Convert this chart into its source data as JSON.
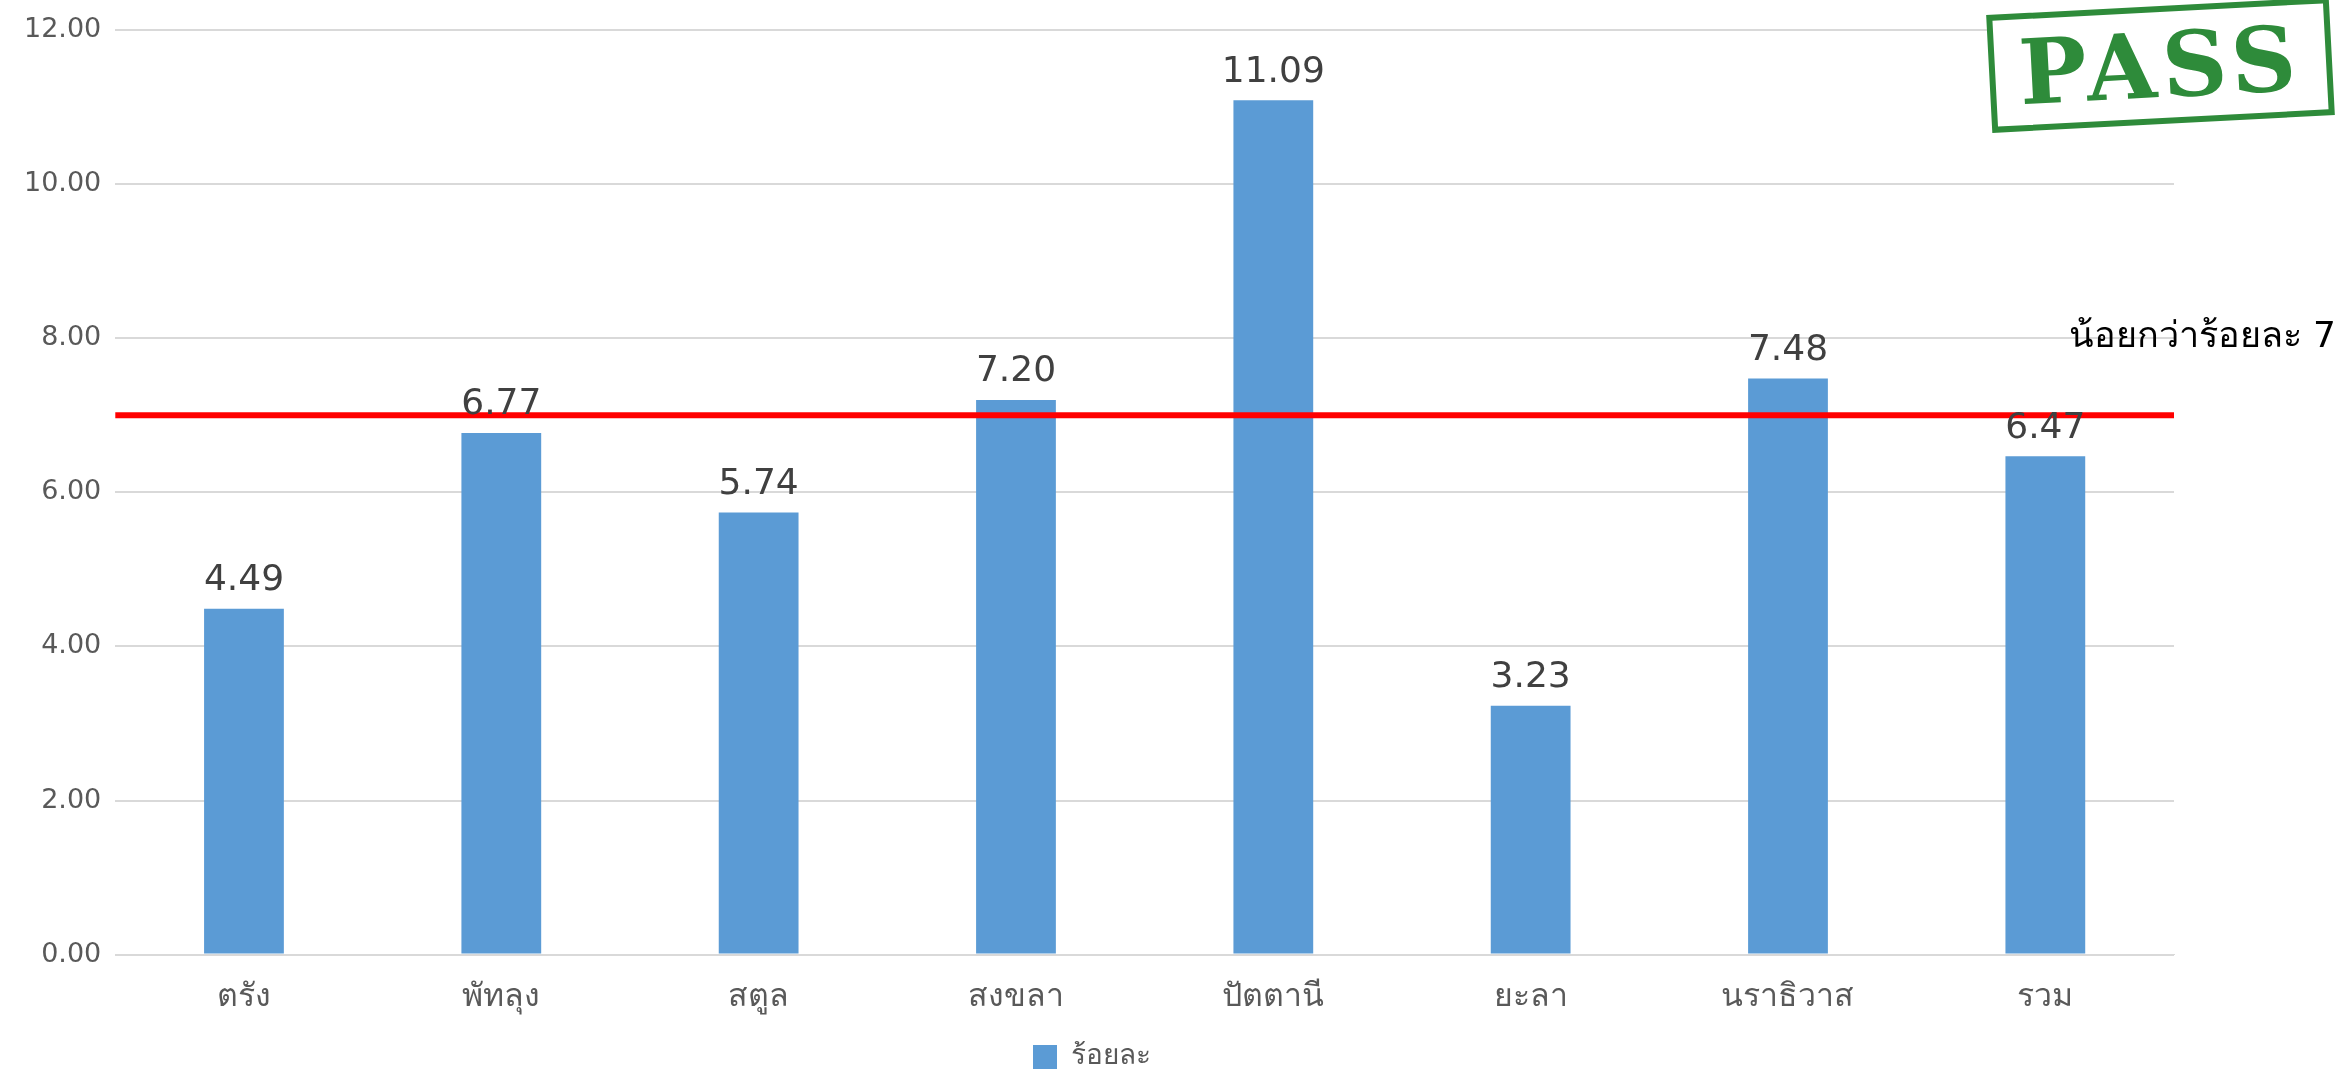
{
  "chart_data": {
    "type": "bar",
    "categories": [
      "ตรัง",
      "พัทลุง",
      "สตูล",
      "สงขลา",
      "ปัตตานี",
      "ยะลา",
      "นราธิวาส",
      "รวม"
    ],
    "series": [
      {
        "name": "ร้อยละ",
        "color": "#5b9bd5",
        "values": [
          4.49,
          6.77,
          5.74,
          7.2,
          11.09,
          3.23,
          7.48,
          6.47
        ]
      }
    ],
    "ylim": [
      0,
      12
    ],
    "yticks": [
      {
        "value": 0,
        "label": "0.00"
      },
      {
        "value": 2,
        "label": "2.00"
      },
      {
        "value": 4,
        "label": "4.00"
      },
      {
        "value": 6,
        "label": "6.00"
      },
      {
        "value": 8,
        "label": "8.00"
      },
      {
        "value": 10,
        "label": "10.00"
      },
      {
        "value": 12,
        "label": "12.00"
      }
    ],
    "grid": "y",
    "legend": "bottom",
    "value_labels": [
      "4.49",
      "6.77",
      "5.74",
      "7.20",
      "11.09",
      "3.23",
      "7.48",
      "6.47"
    ],
    "ref_lines": [
      {
        "axis": "y",
        "value": 7,
        "label": "น้อยกว่าร้อยละ 7",
        "color": "#ff0000"
      }
    ],
    "annotations": [
      "PASS"
    ]
  }
}
